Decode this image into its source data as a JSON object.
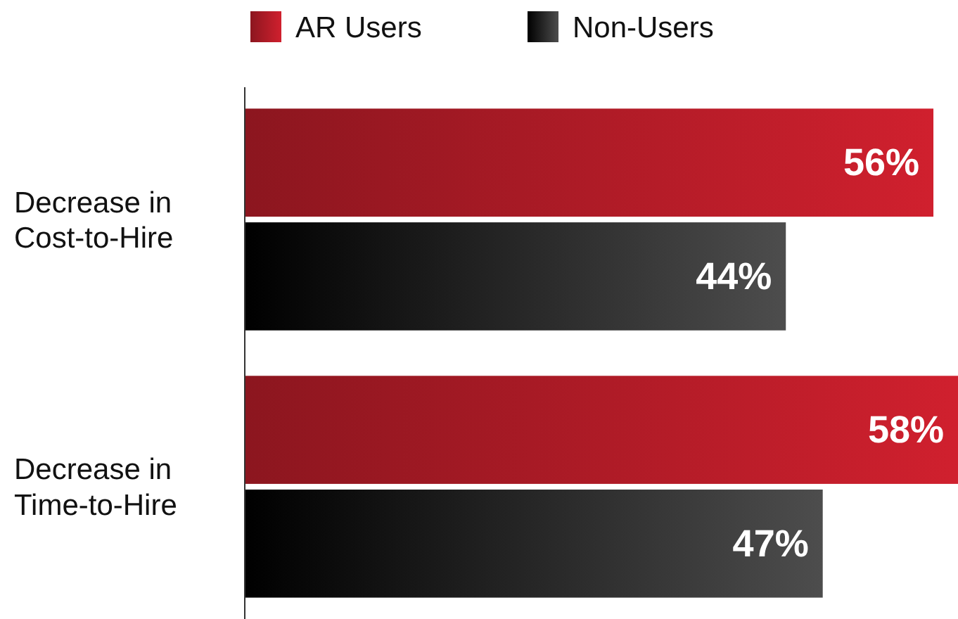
{
  "chart_data": {
    "type": "bar",
    "orientation": "horizontal",
    "categories": [
      "Decrease in Cost-to-Hire",
      "Decrease in Time-to-Hire"
    ],
    "series": [
      {
        "name": "AR Users",
        "color": "#d0202e",
        "values": [
          56,
          58
        ],
        "value_labels": [
          "56%",
          "58%"
        ]
      },
      {
        "name": "Non-Users",
        "color": "#4d4d4d",
        "values": [
          44,
          47
        ],
        "value_labels": [
          "44%",
          "47%"
        ]
      }
    ],
    "legend": "top"
  }
}
